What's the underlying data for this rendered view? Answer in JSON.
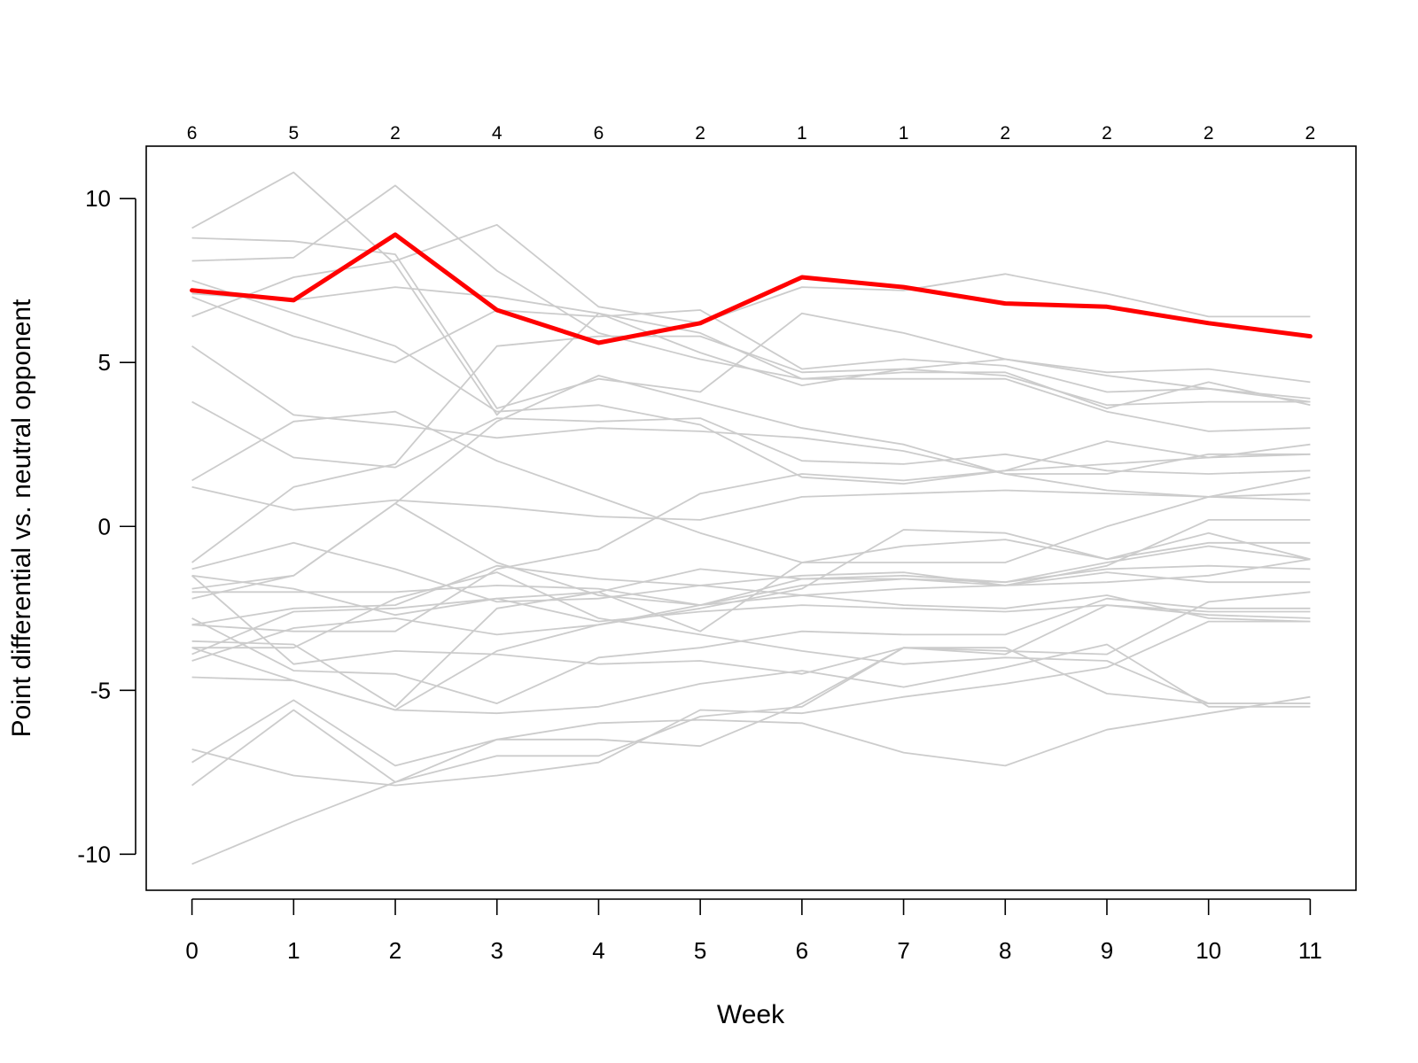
{
  "chart_data": {
    "type": "line",
    "title": "",
    "xlabel": "Week",
    "ylabel": "Point differential vs. neutral opponent",
    "x": [
      0,
      1,
      2,
      3,
      4,
      5,
      6,
      7,
      8,
      9,
      10,
      11
    ],
    "x_tick_labels": [
      "0",
      "1",
      "2",
      "3",
      "4",
      "5",
      "6",
      "7",
      "8",
      "9",
      "10",
      "11"
    ],
    "y_ticks": [
      10,
      5,
      0,
      -5,
      -10
    ],
    "y_tick_labels": [
      "10",
      "5",
      "0",
      "-5",
      "-10"
    ],
    "xlim": [
      -0.45,
      11.45
    ],
    "ylim": [
      -11.1,
      11.6
    ],
    "top_labels": [
      "6",
      "5",
      "2",
      "4",
      "6",
      "2",
      "1",
      "1",
      "2",
      "2",
      "2",
      "2"
    ],
    "grid": false,
    "colors": {
      "highlight": "#ff0000",
      "background_series": "#cccccc"
    },
    "highlight": {
      "values": [
        7.2,
        6.9,
        8.9,
        6.6,
        5.6,
        6.2,
        7.6,
        7.3,
        6.8,
        6.7,
        6.2,
        5.8
      ]
    },
    "series": [
      {
        "values": [
          9.1,
          10.8,
          8.0,
          3.4,
          6.5,
          5.9,
          4.5,
          4.7,
          4.7,
          3.6,
          4.4,
          3.7
        ]
      },
      {
        "values": [
          8.8,
          8.7,
          8.3,
          3.6,
          4.5,
          4.1,
          6.5,
          5.9,
          5.1,
          4.7,
          4.8,
          4.4
        ]
      },
      {
        "values": [
          8.1,
          8.2,
          10.4,
          7.8,
          5.9,
          5.1,
          4.5,
          4.5,
          4.5,
          3.5,
          2.9,
          3.0
        ]
      },
      {
        "values": [
          7.5,
          6.5,
          5.5,
          3.5,
          3.7,
          3.1,
          1.5,
          1.3,
          1.7,
          1.9,
          2.1,
          2.5
        ]
      },
      {
        "values": [
          7.0,
          5.8,
          5.0,
          6.6,
          6.4,
          6.6,
          4.8,
          5.1,
          4.9,
          4.1,
          4.2,
          3.9
        ]
      },
      {
        "values": [
          6.4,
          7.6,
          8.1,
          9.2,
          6.7,
          6.2,
          7.3,
          7.2,
          7.7,
          7.1,
          6.4,
          6.4
        ]
      },
      {
        "values": [
          7.1,
          6.9,
          7.3,
          7.0,
          6.5,
          5.3,
          4.3,
          4.8,
          5.1,
          4.6,
          4.2,
          3.8
        ]
      },
      {
        "values": [
          5.5,
          3.4,
          3.1,
          2.7,
          3.0,
          2.9,
          2.7,
          2.3,
          1.6,
          1.1,
          0.9,
          1.0
        ]
      },
      {
        "values": [
          3.8,
          2.1,
          1.8,
          3.3,
          3.2,
          3.3,
          2.0,
          1.9,
          2.2,
          1.7,
          1.6,
          1.7
        ]
      },
      {
        "values": [
          1.4,
          3.2,
          3.5,
          2.0,
          0.9,
          -0.2,
          -1.1,
          -1.1,
          -1.1,
          0.0,
          0.9,
          1.5
        ]
      },
      {
        "values": [
          1.2,
          0.5,
          0.8,
          0.6,
          0.3,
          0.2,
          0.9,
          1.0,
          1.1,
          1.0,
          0.9,
          0.8
        ]
      },
      {
        "values": [
          -1.1,
          1.2,
          1.9,
          5.5,
          5.8,
          5.8,
          4.7,
          4.8,
          4.6,
          3.7,
          3.8,
          3.8
        ]
      },
      {
        "values": [
          -1.3,
          -0.5,
          -1.3,
          -2.3,
          -2.2,
          -1.8,
          -2.1,
          -1.9,
          -1.8,
          -1.7,
          -1.5,
          -1.0
        ]
      },
      {
        "values": [
          -1.5,
          -4.2,
          -3.8,
          -3.9,
          -4.2,
          -4.1,
          -4.5,
          -3.7,
          -3.8,
          -3.9,
          -2.3,
          -2.0
        ]
      },
      {
        "values": [
          -1.9,
          -1.5,
          0.7,
          -1.1,
          -2.1,
          -2.4,
          -1.8,
          -1.6,
          -1.7,
          -1.1,
          -0.6,
          -1.0
        ]
      },
      {
        "values": [
          -2.0,
          -2.0,
          -2.0,
          -1.8,
          -1.9,
          -2.4,
          -1.6,
          -1.5,
          -1.7,
          -1.3,
          -1.2,
          -1.3
        ]
      },
      {
        "values": [
          -2.2,
          -1.5,
          0.7,
          3.2,
          4.6,
          3.8,
          3.0,
          2.5,
          1.6,
          1.6,
          2.2,
          2.2
        ]
      },
      {
        "values": [
          -2.8,
          -4.4,
          -4.5,
          -5.4,
          -4.0,
          -3.7,
          -3.2,
          -3.3,
          -3.3,
          -2.2,
          -2.5,
          -2.5
        ]
      },
      {
        "values": [
          -3.0,
          -2.5,
          -2.4,
          -1.2,
          -1.6,
          -1.8,
          -1.5,
          -1.4,
          -1.8,
          -1.4,
          -1.7,
          -1.7
        ]
      },
      {
        "values": [
          -3.0,
          -3.2,
          -3.2,
          -1.3,
          -0.7,
          1.0,
          1.6,
          1.4,
          1.7,
          2.6,
          2.1,
          2.2
        ]
      },
      {
        "values": [
          -3.5,
          -3.6,
          -5.5,
          -2.5,
          -2.0,
          -3.2,
          -1.1,
          -0.6,
          -0.4,
          -1.0,
          -0.5,
          -0.5
        ]
      },
      {
        "values": [
          -3.7,
          -3.7,
          -2.2,
          -1.4,
          -2.8,
          -3.3,
          -3.8,
          -4.2,
          -4.0,
          -4.1,
          -5.4,
          -5.4
        ]
      },
      {
        "values": [
          -3.9,
          -2.6,
          -2.5,
          -2.2,
          -2.9,
          -2.6,
          -2.4,
          -2.5,
          -2.6,
          -2.4,
          -2.6,
          -2.6
        ]
      },
      {
        "values": [
          -4.1,
          -3.1,
          -2.8,
          -3.3,
          -3.0,
          -2.4,
          -2.1,
          -2.4,
          -2.5,
          -2.1,
          -2.8,
          -2.9
        ]
      },
      {
        "values": [
          -4.6,
          -4.7,
          -5.6,
          -5.7,
          -5.5,
          -4.8,
          -4.4,
          -4.9,
          -4.3,
          -3.6,
          -5.5,
          -5.5
        ]
      },
      {
        "values": [
          -6.8,
          -7.6,
          -7.9,
          -7.6,
          -7.2,
          -5.6,
          -5.7,
          -5.2,
          -4.8,
          -4.3,
          -2.9,
          -2.9
        ]
      },
      {
        "values": [
          -7.2,
          -5.3,
          -7.3,
          -6.5,
          -6.0,
          -5.9,
          -6.0,
          -6.9,
          -7.3,
          -6.2,
          -5.7,
          -5.2
        ]
      },
      {
        "values": [
          -7.9,
          -5.6,
          -7.8,
          -6.5,
          -6.5,
          -6.7,
          -5.4,
          -3.7,
          -3.7,
          -5.1,
          -5.4,
          -5.4
        ]
      },
      {
        "values": [
          -10.3,
          -9.0,
          -7.8,
          -7.0,
          -7.0,
          -5.8,
          -5.5,
          -3.7,
          -3.9,
          -2.4,
          -2.7,
          -2.8
        ]
      },
      {
        "values": [
          -1.5,
          -1.9,
          -2.7,
          -2.2,
          -2.0,
          -1.3,
          -1.6,
          -1.6,
          -1.8,
          -1.2,
          0.2,
          0.2
        ]
      },
      {
        "values": [
          -3.7,
          -4.7,
          -5.6,
          -3.8,
          -3.0,
          -2.5,
          -1.9,
          -0.1,
          -0.2,
          -1.0,
          -0.2,
          -1.0
        ]
      }
    ]
  }
}
